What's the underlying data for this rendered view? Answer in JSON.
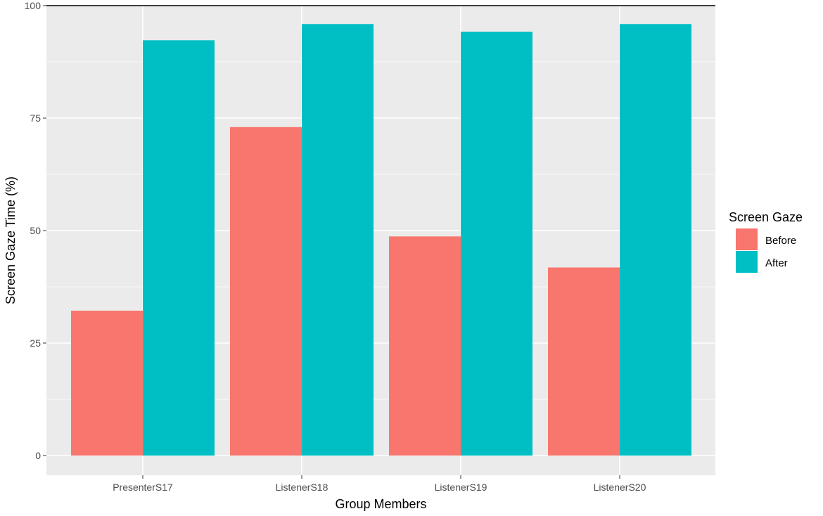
{
  "chart_data": {
    "type": "bar",
    "title": "",
    "xlabel": "Group Members",
    "ylabel": "Screen Gaze Time (%)",
    "categories": [
      "PresenterS17",
      "ListenerS18",
      "ListenerS19",
      "ListenerS20"
    ],
    "series": [
      {
        "name": "Before",
        "color": "#F8766D",
        "values": [
          32.2,
          73.0,
          48.7,
          41.8
        ]
      },
      {
        "name": "After",
        "color": "#00BFC4",
        "values": [
          92.3,
          95.9,
          94.2,
          95.9
        ]
      }
    ],
    "ylim": [
      0,
      100
    ],
    "yticks": [
      "0",
      "25",
      "50",
      "75",
      "100"
    ],
    "grid": true,
    "legend": {
      "title": "Screen Gaze",
      "position": "right"
    }
  }
}
